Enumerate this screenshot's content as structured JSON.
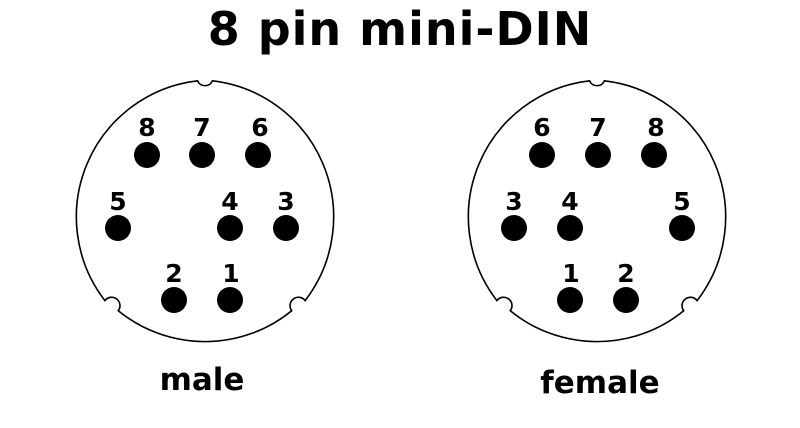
{
  "title": "8 pin mini-DIN",
  "connectors": [
    {
      "id": "male",
      "label": "male",
      "pins": [
        {
          "label": "8"
        },
        {
          "label": "7"
        },
        {
          "label": "6"
        },
        {
          "label": "5"
        },
        {
          "label": "4"
        },
        {
          "label": "3"
        },
        {
          "label": "2"
        },
        {
          "label": "1"
        }
      ]
    },
    {
      "id": "female",
      "label": "female",
      "pins": [
        {
          "label": "6"
        },
        {
          "label": "7"
        },
        {
          "label": "8"
        },
        {
          "label": "3"
        },
        {
          "label": "4"
        },
        {
          "label": "5"
        },
        {
          "label": "1"
        },
        {
          "label": "2"
        }
      ]
    }
  ]
}
